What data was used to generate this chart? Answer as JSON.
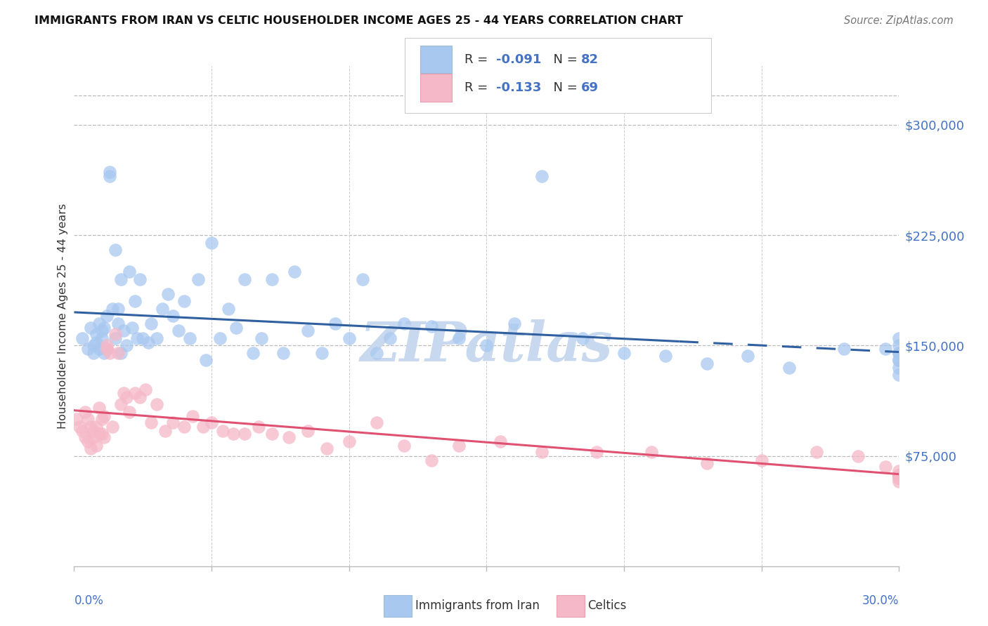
{
  "title": "IMMIGRANTS FROM IRAN VS CELTIC HOUSEHOLDER INCOME AGES 25 - 44 YEARS CORRELATION CHART",
  "source": "Source: ZipAtlas.com",
  "ylabel": "Householder Income Ages 25 - 44 years",
  "ytick_labels": [
    "$75,000",
    "$150,000",
    "$225,000",
    "$300,000"
  ],
  "ytick_values": [
    75000,
    150000,
    225000,
    300000
  ],
  "ymin": 0,
  "ymax": 340000,
  "xmin": 0.0,
  "xmax": 0.3,
  "legend1_R": "-0.091",
  "legend1_N": "82",
  "legend2_R": "-0.133",
  "legend2_N": "69",
  "blue_color": "#A8C8F0",
  "pink_color": "#F5B8C8",
  "blue_line_color": "#3060A0",
  "pink_line_color": "#E05070",
  "label_color": "#4472C4",
  "watermark": "ZIPatlas",
  "watermark_color": "#C8D8EE",
  "iran_scatter_x": [
    0.003,
    0.005,
    0.006,
    0.007,
    0.007,
    0.008,
    0.008,
    0.009,
    0.009,
    0.01,
    0.01,
    0.011,
    0.011,
    0.012,
    0.012,
    0.013,
    0.013,
    0.014,
    0.015,
    0.015,
    0.016,
    0.016,
    0.017,
    0.017,
    0.018,
    0.019,
    0.02,
    0.021,
    0.022,
    0.023,
    0.024,
    0.025,
    0.027,
    0.028,
    0.03,
    0.032,
    0.034,
    0.036,
    0.038,
    0.04,
    0.042,
    0.045,
    0.048,
    0.05,
    0.053,
    0.056,
    0.059,
    0.062,
    0.065,
    0.068,
    0.072,
    0.076,
    0.08,
    0.085,
    0.09,
    0.095,
    0.1,
    0.105,
    0.11,
    0.115,
    0.12,
    0.13,
    0.14,
    0.15,
    0.16,
    0.17,
    0.185,
    0.2,
    0.215,
    0.23,
    0.245,
    0.26,
    0.28,
    0.295,
    0.3,
    0.3,
    0.3,
    0.3,
    0.3,
    0.3,
    0.3,
    0.3
  ],
  "iran_scatter_y": [
    155000,
    148000,
    162000,
    150000,
    145000,
    158000,
    152000,
    165000,
    148000,
    160000,
    155000,
    162000,
    145000,
    170000,
    148000,
    265000,
    268000,
    175000,
    215000,
    155000,
    165000,
    175000,
    195000,
    145000,
    160000,
    150000,
    200000,
    162000,
    180000,
    155000,
    195000,
    155000,
    152000,
    165000,
    155000,
    175000,
    185000,
    170000,
    160000,
    180000,
    155000,
    195000,
    140000,
    220000,
    155000,
    175000,
    162000,
    195000,
    145000,
    155000,
    195000,
    145000,
    200000,
    160000,
    145000,
    165000,
    155000,
    195000,
    145000,
    155000,
    165000,
    163000,
    155000,
    150000,
    165000,
    265000,
    155000,
    145000,
    143000,
    138000,
    143000,
    135000,
    148000,
    148000,
    155000,
    145000,
    150000,
    140000,
    145000,
    135000,
    140000,
    130000
  ],
  "celtic_scatter_x": [
    0.001,
    0.002,
    0.003,
    0.004,
    0.004,
    0.005,
    0.005,
    0.006,
    0.006,
    0.007,
    0.007,
    0.008,
    0.008,
    0.009,
    0.009,
    0.01,
    0.01,
    0.011,
    0.011,
    0.012,
    0.012,
    0.013,
    0.014,
    0.015,
    0.016,
    0.017,
    0.018,
    0.019,
    0.02,
    0.022,
    0.024,
    0.026,
    0.028,
    0.03,
    0.033,
    0.036,
    0.04,
    0.043,
    0.047,
    0.05,
    0.054,
    0.058,
    0.062,
    0.067,
    0.072,
    0.078,
    0.085,
    0.092,
    0.1,
    0.11,
    0.12,
    0.13,
    0.14,
    0.155,
    0.17,
    0.19,
    0.21,
    0.23,
    0.25,
    0.27,
    0.285,
    0.295,
    0.3,
    0.3,
    0.3,
    0.3,
    0.3,
    0.3,
    0.3
  ],
  "celtic_scatter_y": [
    100000,
    95000,
    92000,
    105000,
    88000,
    100000,
    85000,
    95000,
    80000,
    92000,
    88000,
    95000,
    82000,
    90000,
    108000,
    100000,
    90000,
    102000,
    88000,
    148000,
    150000,
    145000,
    95000,
    158000,
    145000,
    110000,
    118000,
    115000,
    105000,
    118000,
    115000,
    120000,
    98000,
    110000,
    92000,
    98000,
    95000,
    102000,
    95000,
    98000,
    92000,
    90000,
    90000,
    95000,
    90000,
    88000,
    92000,
    80000,
    85000,
    98000,
    82000,
    72000,
    82000,
    85000,
    78000,
    78000,
    78000,
    70000,
    72000,
    78000,
    75000,
    68000,
    62000,
    65000,
    62000,
    60000,
    58000,
    62000,
    60000
  ]
}
